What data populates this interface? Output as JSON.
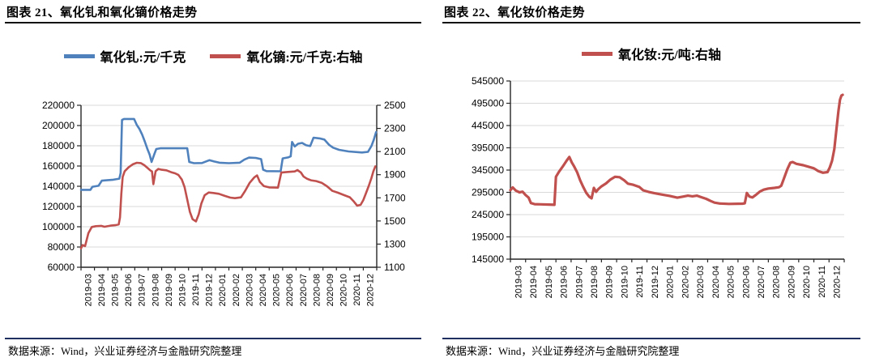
{
  "figures": [
    {
      "title": "图表 21、氧化钆和氧化镝价格走势",
      "source": "数据来源：Wind，兴业证券经济与金融研究院整理"
    },
    {
      "title": "图表 22、氧化钕价格走势",
      "source": "数据来源：Wind，兴业证券经济与金融研究院整理"
    }
  ],
  "colors": {
    "blue": "#4F81BD",
    "red": "#C0504D",
    "grid": "#D9D9D9",
    "axis": "#262626",
    "text": "#000000",
    "title_rule": "#121212",
    "bottom_rule": "#1F3060"
  },
  "chart_data": [
    {
      "type": "line",
      "title": "图表 21、氧化钆和氧化镝价格走势",
      "grid": true,
      "legend_position": "top",
      "x_categories": [
        "2019-03",
        "2019-04",
        "2019-05",
        "2019-06",
        "2019-07",
        "2019-08",
        "2019-09",
        "2019-10",
        "2019-11",
        "2019-12",
        "2020-01",
        "2020-02",
        "2020-03",
        "2020-04",
        "2020-05",
        "2020-06",
        "2020-07",
        "2020-08",
        "2020-09",
        "2020-10",
        "2020-11",
        "2020-12"
      ],
      "y_left": {
        "min": 60000,
        "max": 220000,
        "step": 20000,
        "tick_labels": [
          "220000",
          "200000",
          "180000",
          "160000",
          "140000",
          "120000",
          "100000",
          "80000",
          "60000"
        ]
      },
      "y_right": {
        "min": 1100,
        "max": 2500,
        "step": 200,
        "tick_labels": [
          "2500",
          "2300",
          "2100",
          "1900",
          "1700",
          "1500",
          "1300",
          "1100"
        ]
      },
      "series": [
        {
          "name": "氧化钆:元/千克",
          "axis": "left",
          "color": "#4F81BD",
          "points": [
            [
              0,
              136500
            ],
            [
              0.7,
              136500
            ],
            [
              0.85,
              139500
            ],
            [
              1.3,
              140500
            ],
            [
              1.55,
              145500
            ],
            [
              2.4,
              146500
            ],
            [
              2.85,
              147500
            ],
            [
              2.95,
              153000
            ],
            [
              3.05,
              205500
            ],
            [
              3.2,
              206500
            ],
            [
              3.95,
              206500
            ],
            [
              4.15,
              200500
            ],
            [
              4.35,
              196500
            ],
            [
              4.55,
              191000
            ],
            [
              4.75,
              184000
            ],
            [
              4.95,
              176500
            ],
            [
              5.1,
              171500
            ],
            [
              5.25,
              164000
            ],
            [
              5.45,
              171500
            ],
            [
              5.6,
              176800
            ],
            [
              5.9,
              177500
            ],
            [
              7.9,
              177500
            ],
            [
              8.05,
              164000
            ],
            [
              8.4,
              162800
            ],
            [
              9.0,
              163000
            ],
            [
              9.55,
              165800
            ],
            [
              9.9,
              164500
            ],
            [
              10.3,
              163300
            ],
            [
              11.0,
              162800
            ],
            [
              11.8,
              163300
            ],
            [
              12.15,
              166300
            ],
            [
              12.5,
              168300
            ],
            [
              13.0,
              168000
            ],
            [
              13.4,
              166800
            ],
            [
              13.55,
              156300
            ],
            [
              13.8,
              155000
            ],
            [
              14.85,
              154800
            ],
            [
              15.0,
              167500
            ],
            [
              15.4,
              168500
            ],
            [
              15.6,
              169500
            ],
            [
              15.7,
              183800
            ],
            [
              15.9,
              179300
            ],
            [
              16.15,
              182000
            ],
            [
              16.45,
              182800
            ],
            [
              16.75,
              180500
            ],
            [
              17.05,
              179800
            ],
            [
              17.3,
              188000
            ],
            [
              17.75,
              187300
            ],
            [
              18.1,
              186200
            ],
            [
              18.45,
              181000
            ],
            [
              18.75,
              178200
            ],
            [
              19.2,
              176000
            ],
            [
              19.9,
              174400
            ],
            [
              20.9,
              173400
            ],
            [
              21.35,
              174000
            ],
            [
              21.6,
              179700
            ],
            [
              21.78,
              186000
            ],
            [
              21.95,
              193500
            ]
          ]
        },
        {
          "name": "氧化镝:元/千克:右轴",
          "axis": "right",
          "color": "#C0504D",
          "points": [
            [
              0,
              1263
            ],
            [
              0.12,
              1292
            ],
            [
              0.3,
              1283
            ],
            [
              0.55,
              1395
            ],
            [
              0.8,
              1448
            ],
            [
              1.1,
              1455
            ],
            [
              1.5,
              1458
            ],
            [
              1.75,
              1450
            ],
            [
              2.2,
              1460
            ],
            [
              2.6,
              1465
            ],
            [
              2.8,
              1470
            ],
            [
              2.9,
              1530
            ],
            [
              3.0,
              1740
            ],
            [
              3.1,
              1880
            ],
            [
              3.25,
              1930
            ],
            [
              3.55,
              1965
            ],
            [
              3.85,
              1990
            ],
            [
              4.15,
              2003
            ],
            [
              4.45,
              2000
            ],
            [
              4.7,
              1983
            ],
            [
              4.95,
              1958
            ],
            [
              5.15,
              1938
            ],
            [
              5.28,
              1928
            ],
            [
              5.38,
              1818
            ],
            [
              5.55,
              1930
            ],
            [
              5.75,
              1950
            ],
            [
              6.0,
              1943
            ],
            [
              6.35,
              1938
            ],
            [
              6.7,
              1922
            ],
            [
              7.0,
              1912
            ],
            [
              7.25,
              1897
            ],
            [
              7.5,
              1858
            ],
            [
              7.7,
              1793
            ],
            [
              7.9,
              1685
            ],
            [
              8.1,
              1578
            ],
            [
              8.3,
              1515
            ],
            [
              8.55,
              1496
            ],
            [
              8.75,
              1556
            ],
            [
              8.95,
              1650
            ],
            [
              9.2,
              1722
            ],
            [
              9.5,
              1746
            ],
            [
              9.85,
              1742
            ],
            [
              10.25,
              1735
            ],
            [
              10.7,
              1717
            ],
            [
              11.1,
              1702
            ],
            [
              11.45,
              1697
            ],
            [
              11.9,
              1704
            ],
            [
              12.2,
              1758
            ],
            [
              12.55,
              1830
            ],
            [
              12.9,
              1878
            ],
            [
              13.1,
              1894
            ],
            [
              13.3,
              1838
            ],
            [
              13.6,
              1802
            ],
            [
              14.0,
              1790
            ],
            [
              14.65,
              1788
            ],
            [
              14.9,
              1918
            ],
            [
              15.3,
              1923
            ],
            [
              15.9,
              1928
            ],
            [
              16.1,
              1940
            ],
            [
              16.35,
              1920
            ],
            [
              16.55,
              1885
            ],
            [
              16.8,
              1866
            ],
            [
              17.1,
              1852
            ],
            [
              17.5,
              1845
            ],
            [
              17.9,
              1830
            ],
            [
              18.3,
              1800
            ],
            [
              18.7,
              1760
            ],
            [
              19.1,
              1745
            ],
            [
              19.6,
              1722
            ],
            [
              20.0,
              1705
            ],
            [
              20.3,
              1668
            ],
            [
              20.55,
              1632
            ],
            [
              20.8,
              1640
            ],
            [
              21.0,
              1680
            ],
            [
              21.2,
              1740
            ],
            [
              21.4,
              1800
            ],
            [
              21.6,
              1870
            ],
            [
              21.75,
              1930
            ],
            [
              21.9,
              1972
            ]
          ]
        }
      ]
    },
    {
      "type": "line",
      "title": "图表 22、氧化钕价格走势",
      "grid": true,
      "legend_position": "top",
      "x_categories": [
        "2019-03",
        "2019-04",
        "2019-05",
        "2019-06",
        "2019-07",
        "2019-08",
        "2019-09",
        "2019-10",
        "2019-11",
        "2019-12",
        "2020-01",
        "2020-02",
        "2020-03",
        "2020-04",
        "2020-05",
        "2020-06",
        "2020-07",
        "2020-08",
        "2020-09",
        "2020-10",
        "2020-11",
        "2020-12"
      ],
      "y_left": {
        "min": 145000,
        "max": 545000,
        "step": 50000,
        "tick_labels": [
          "545000",
          "495000",
          "445000",
          "395000",
          "345000",
          "295000",
          "245000",
          "195000",
          "145000"
        ]
      },
      "series": [
        {
          "name": "氧化钕:元/吨:右轴",
          "axis": "left",
          "color": "#C0504D",
          "points": [
            [
              0,
              300000
            ],
            [
              0.15,
              306000
            ],
            [
              0.35,
              299000
            ],
            [
              0.6,
              295000
            ],
            [
              0.8,
              296500
            ],
            [
              1.0,
              289000
            ],
            [
              1.2,
              283000
            ],
            [
              1.35,
              271000
            ],
            [
              1.6,
              268500
            ],
            [
              2.0,
              268000
            ],
            [
              2.55,
              267500
            ],
            [
              2.9,
              267000
            ],
            [
              3.0,
              330000
            ],
            [
              3.2,
              341000
            ],
            [
              3.45,
              353000
            ],
            [
              3.7,
              366000
            ],
            [
              3.88,
              374500
            ],
            [
              4.05,
              362000
            ],
            [
              4.2,
              353000
            ],
            [
              4.4,
              340000
            ],
            [
              4.6,
              322000
            ],
            [
              4.8,
              307000
            ],
            [
              5.0,
              294000
            ],
            [
              5.2,
              285000
            ],
            [
              5.35,
              281500
            ],
            [
              5.5,
              305000
            ],
            [
              5.65,
              296000
            ],
            [
              5.8,
              302500
            ],
            [
              6.0,
              308500
            ],
            [
              6.3,
              315000
            ],
            [
              6.6,
              324000
            ],
            [
              6.9,
              330000
            ],
            [
              7.2,
              329000
            ],
            [
              7.5,
              322000
            ],
            [
              7.75,
              314500
            ],
            [
              8.1,
              312000
            ],
            [
              8.5,
              307000
            ],
            [
              8.75,
              299500
            ],
            [
              9.1,
              296000
            ],
            [
              9.5,
              293000
            ],
            [
              10.0,
              290000
            ],
            [
              10.5,
              287000
            ],
            [
              11.0,
              283000
            ],
            [
              11.4,
              285500
            ],
            [
              11.7,
              287500
            ],
            [
              12.0,
              286000
            ],
            [
              12.3,
              287500
            ],
            [
              12.6,
              284000
            ],
            [
              12.9,
              280500
            ],
            [
              13.2,
              275500
            ],
            [
              13.45,
              272000
            ],
            [
              13.8,
              270000
            ],
            [
              14.4,
              269000
            ],
            [
              15.3,
              269500
            ],
            [
              15.45,
              270500
            ],
            [
              15.58,
              293500
            ],
            [
              15.75,
              285500
            ],
            [
              15.95,
              283500
            ],
            [
              16.2,
              290000
            ],
            [
              16.45,
              297000
            ],
            [
              16.7,
              301000
            ],
            [
              17.0,
              303500
            ],
            [
              17.4,
              305000
            ],
            [
              17.7,
              306500
            ],
            [
              17.85,
              310000
            ],
            [
              18.05,
              328000
            ],
            [
              18.25,
              347000
            ],
            [
              18.45,
              361500
            ],
            [
              18.6,
              363000
            ],
            [
              18.85,
              359000
            ],
            [
              19.3,
              356000
            ],
            [
              19.7,
              352000
            ],
            [
              20.0,
              349000
            ],
            [
              20.3,
              342500
            ],
            [
              20.6,
              339000
            ],
            [
              20.9,
              340500
            ],
            [
              21.05,
              351000
            ],
            [
              21.2,
              366000
            ],
            [
              21.35,
              392000
            ],
            [
              21.5,
              440000
            ],
            [
              21.62,
              478000
            ],
            [
              21.72,
              503000
            ],
            [
              21.82,
              512500
            ],
            [
              21.9,
              514000
            ]
          ]
        }
      ]
    }
  ]
}
